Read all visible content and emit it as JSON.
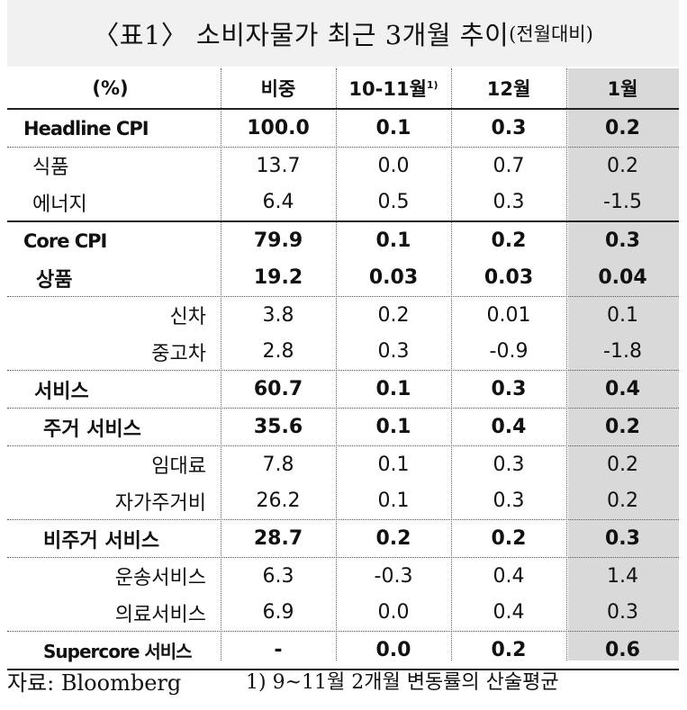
{
  "title": {
    "main": "〈표1〉 소비자물가 최근 3개월 추이",
    "sub": "(전월대비)"
  },
  "header": {
    "label": "(%)",
    "weight": "비중",
    "c1": "10-11월",
    "c1_sup": "1)",
    "c2": "12월",
    "c3": "1월"
  },
  "rows": [
    {
      "label": "Headline CPI",
      "weight": "100.0",
      "c1": "0.1",
      "c2": "0.3",
      "c3": "0.2"
    },
    {
      "label": "식품",
      "weight": "13.7",
      "c1": "0.0",
      "c2": "0.7",
      "c3": "0.2"
    },
    {
      "label": "에너지",
      "weight": "6.4",
      "c1": "0.5",
      "c2": "0.3",
      "c3": "-1.5"
    },
    {
      "label": "Core CPI",
      "weight": "79.9",
      "c1": "0.1",
      "c2": "0.2",
      "c3": "0.3"
    },
    {
      "label": "상품",
      "weight": "19.2",
      "c1": "0.03",
      "c2": "0.03",
      "c3": "0.04"
    },
    {
      "label": "신차",
      "weight": "3.8",
      "c1": "0.2",
      "c2": "0.01",
      "c3": "0.1"
    },
    {
      "label": "중고차",
      "weight": "2.8",
      "c1": "0.3",
      "c2": "-0.9",
      "c3": "-1.8"
    },
    {
      "label": "서비스",
      "weight": "60.7",
      "c1": "0.1",
      "c2": "0.3",
      "c3": "0.4"
    },
    {
      "label": "주거 서비스",
      "weight": "35.6",
      "c1": "0.1",
      "c2": "0.4",
      "c3": "0.2"
    },
    {
      "label": "임대료",
      "weight": "7.8",
      "c1": "0.1",
      "c2": "0.3",
      "c3": "0.2"
    },
    {
      "label": "자가주거비",
      "weight": "26.2",
      "c1": "0.1",
      "c2": "0.3",
      "c3": "0.2"
    },
    {
      "label": "비주거 서비스",
      "weight": "28.7",
      "c1": "0.2",
      "c2": "0.2",
      "c3": "0.3"
    },
    {
      "label": "운송서비스",
      "weight": "6.3",
      "c1": "-0.3",
      "c2": "0.4",
      "c3": "1.4"
    },
    {
      "label": "의료서비스",
      "weight": "6.9",
      "c1": "0.0",
      "c2": "0.4",
      "c3": "0.3"
    },
    {
      "label": "Supercore 서비스",
      "weight": "-",
      "c1": "0.0",
      "c2": "0.2",
      "c3": "0.6"
    }
  ],
  "footer": {
    "source": "자료: Bloomberg",
    "note": "1) 9~11월 2개월 변동률의 산술평균"
  }
}
